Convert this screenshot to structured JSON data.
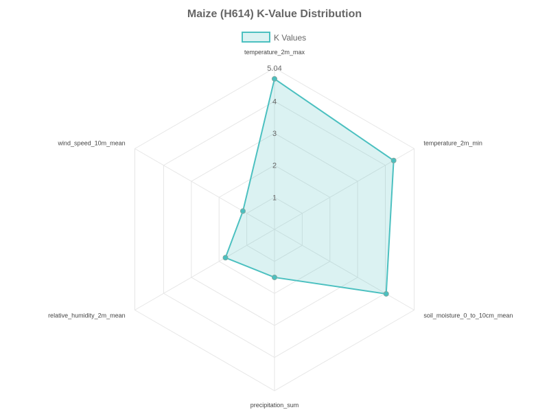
{
  "chart_data": {
    "type": "radar",
    "title": "Maize (H614) K-Value Distribution",
    "axes": [
      "temperature_2m_max",
      "temperature_2m_min",
      "soil_moisture_0_to_10cm_mean",
      "precipitation_sum",
      "relative_humidity_2m_mean",
      "wind_speed_10m_mean"
    ],
    "series": [
      {
        "name": "K Values",
        "values": [
          4.7,
          4.3,
          4.03,
          1.5,
          1.77,
          1.14
        ],
        "color": "#4bc0c0",
        "fill": "rgba(75,192,192,0.2)"
      }
    ],
    "r_ticks": [
      "1",
      "2",
      "3",
      "4",
      "5.04"
    ],
    "r_max": 5.04,
    "legend_position": "top",
    "grid": true
  }
}
